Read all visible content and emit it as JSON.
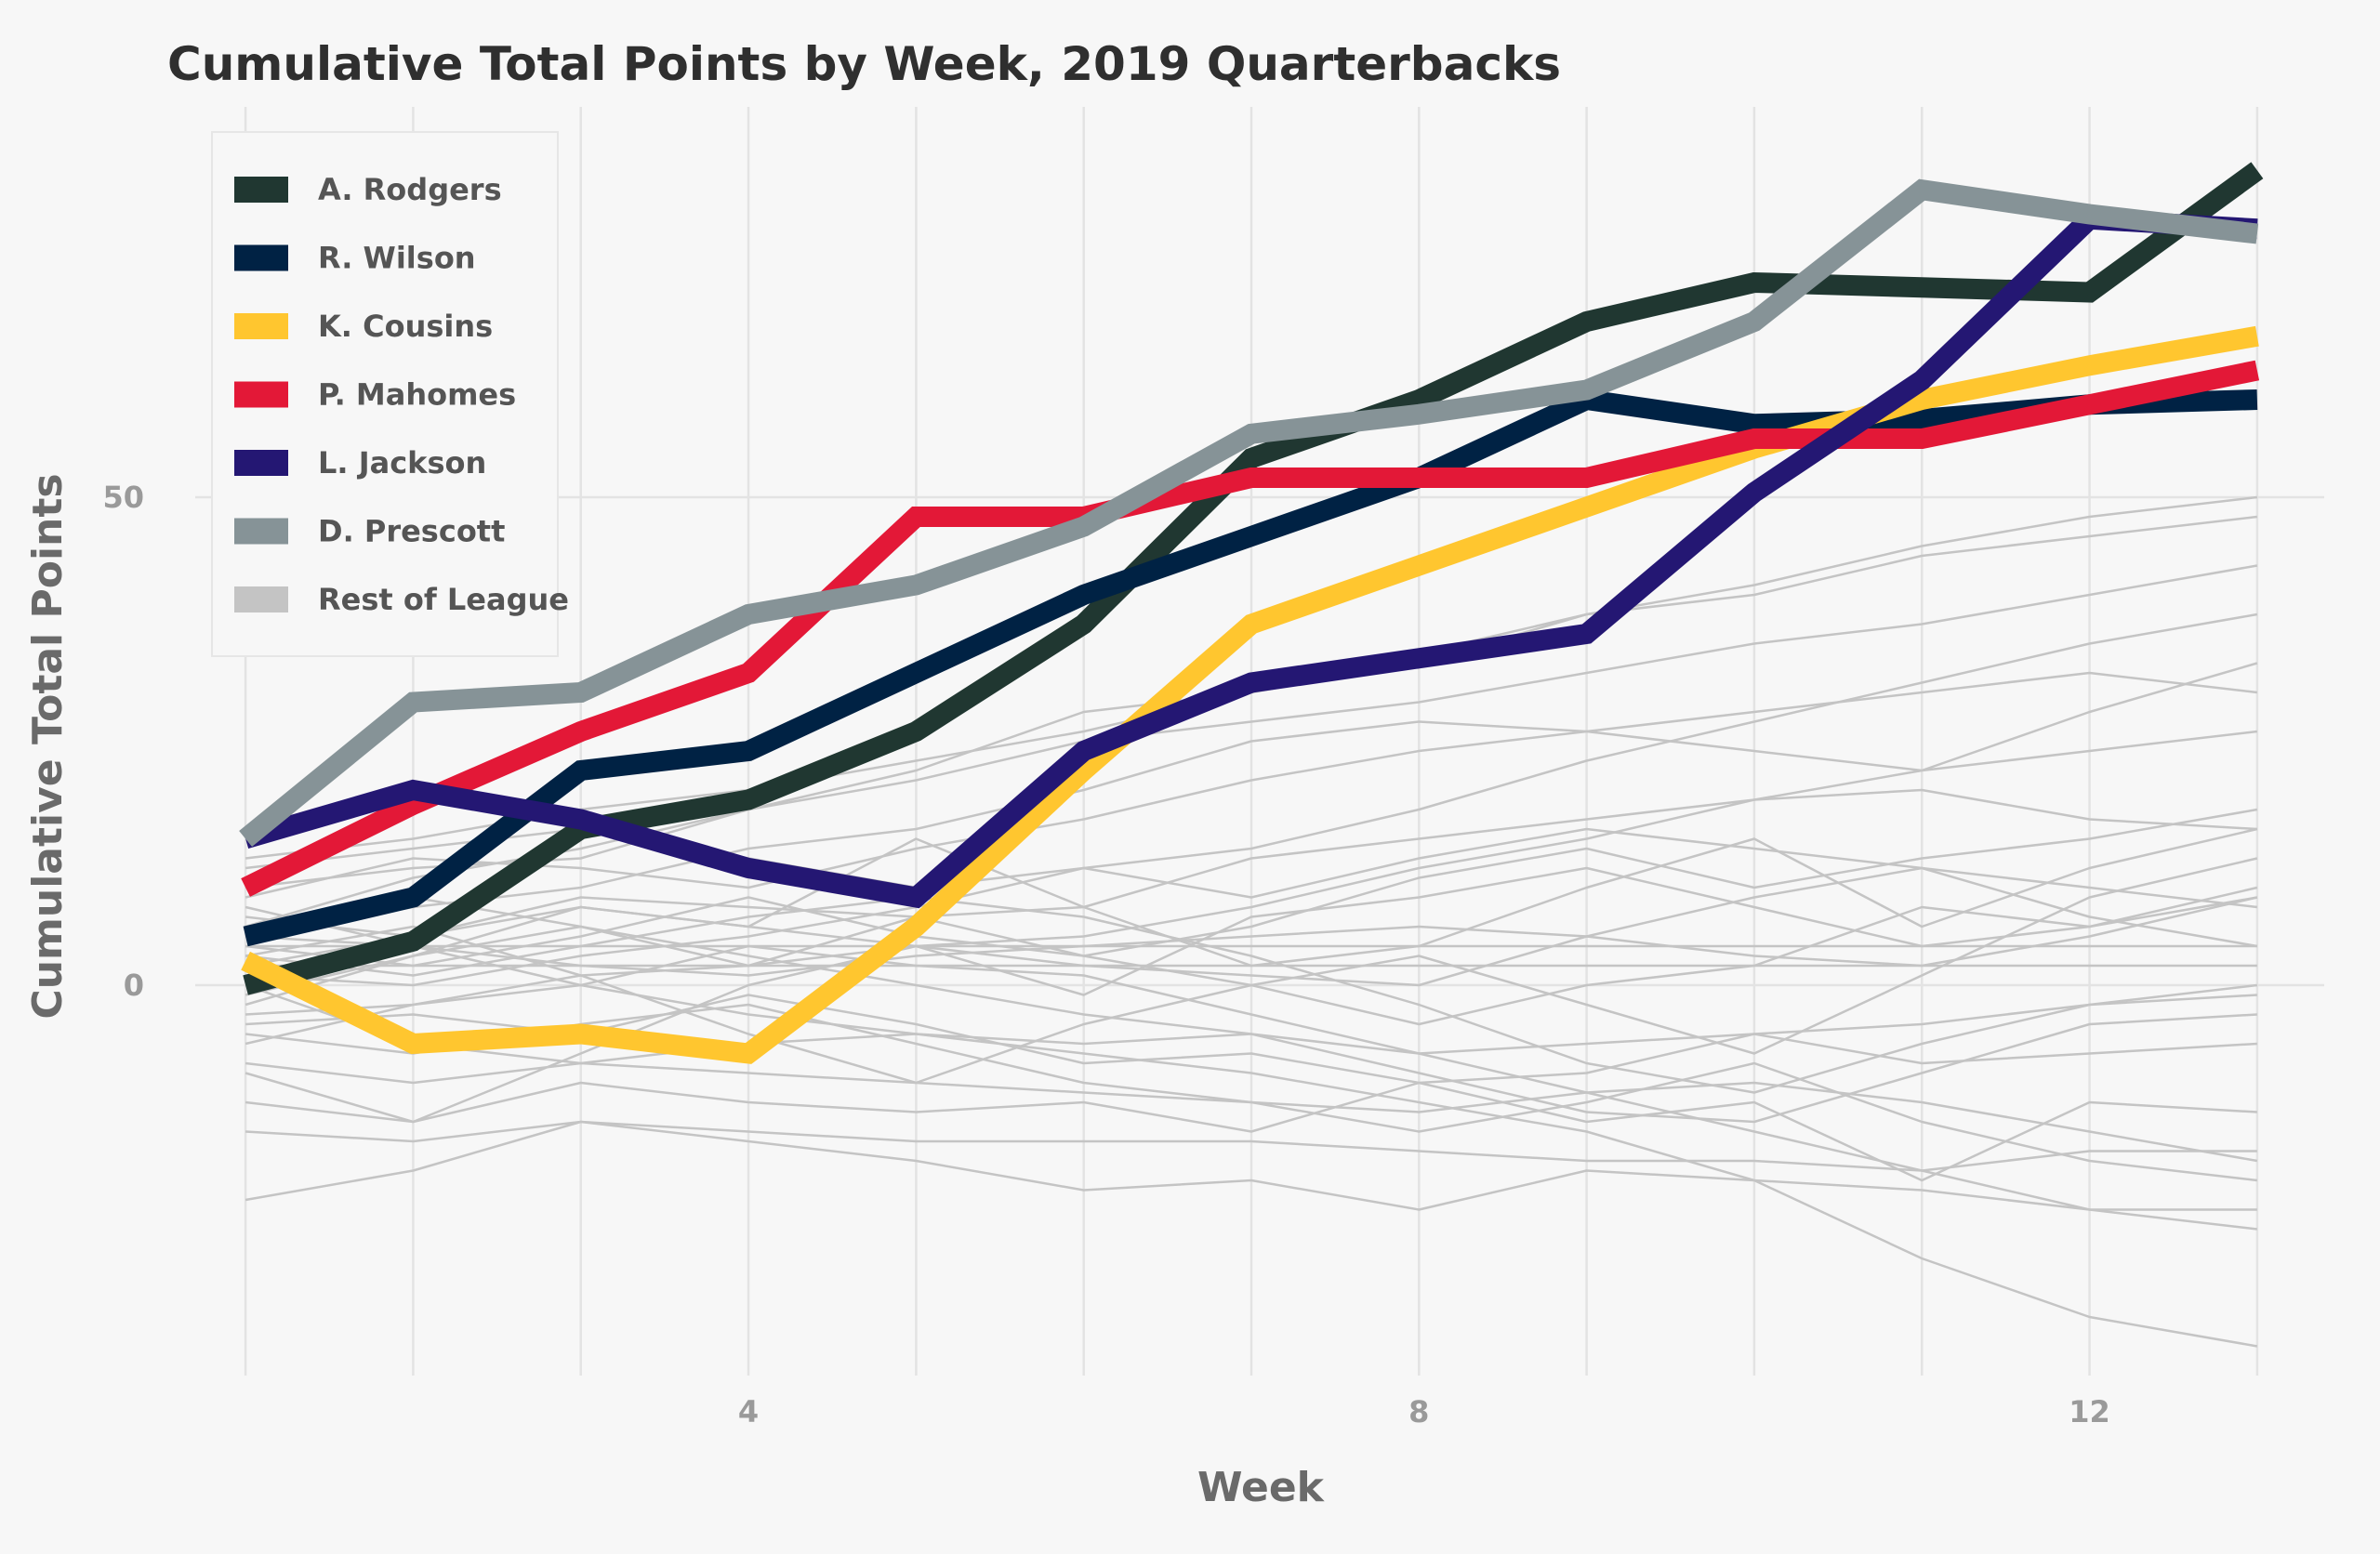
{
  "chart_data": {
    "type": "line",
    "title": "Cumulative Total Points by Week, 2019 Quarterbacks",
    "xlabel": "Week",
    "ylabel": "Cumulative Total Points",
    "xlim": [
      0.7,
      13.4
    ],
    "ylim": [
      -40,
      90
    ],
    "x_ticks": [
      4,
      8,
      12
    ],
    "y_ticks": [
      0,
      50
    ],
    "grid": true,
    "legend_position": "top-left",
    "x": [
      1,
      2,
      3,
      4,
      5,
      6,
      7,
      8,
      9,
      10,
      11,
      12,
      13
    ],
    "series": [
      {
        "name": "A. Rodgers",
        "color": "#203731",
        "highlight": true,
        "values": [
          0,
          4.5,
          16,
          19,
          26,
          37,
          54,
          60,
          68,
          72,
          71.5,
          71,
          83.5
        ]
      },
      {
        "name": "R. Wilson",
        "color": "#002244",
        "highlight": true,
        "values": [
          5,
          9,
          22,
          24,
          32,
          40,
          46,
          52,
          60,
          57.5,
          58,
          59.5,
          60
        ]
      },
      {
        "name": "K. Cousins",
        "color": "#FFC62F",
        "highlight": true,
        "values": [
          2.5,
          -6,
          -5,
          -7,
          6,
          22,
          37,
          43,
          49,
          55,
          60,
          63.5,
          66.5
        ]
      },
      {
        "name": "P. Mahomes",
        "color": "#E31837",
        "highlight": true,
        "values": [
          10,
          18.5,
          26,
          32,
          48,
          48,
          52,
          52,
          52,
          56,
          56,
          59.5,
          63
        ]
      },
      {
        "name": "L. Jackson",
        "color": "#241773",
        "highlight": true,
        "values": [
          15,
          20,
          17,
          12,
          9,
          24,
          31,
          33.5,
          36,
          50.5,
          62,
          78.5,
          77.5
        ]
      },
      {
        "name": "D. Prescott",
        "color": "#869397",
        "highlight": true,
        "values": [
          15,
          29,
          30,
          38,
          41,
          47,
          56.5,
          58.5,
          61,
          68,
          81.5,
          79,
          77
        ]
      },
      {
        "name": "Rest of League",
        "color": "#c4c4c4",
        "highlight": false,
        "lines": [
          [
            -2,
            3,
            8,
            6,
            15,
            8,
            2,
            4,
            10,
            15,
            6,
            12,
            16
          ],
          [
            -9,
            -14,
            -7,
            0,
            4,
            -1,
            7,
            9,
            12,
            8,
            4,
            6,
            9
          ],
          [
            3,
            6,
            1,
            -5,
            -10,
            -4,
            0,
            3,
            -2,
            -7,
            1,
            9,
            13
          ],
          [
            -15,
            -16,
            -14,
            -15,
            -16,
            -16,
            -16,
            -17,
            -18,
            -18,
            -19,
            -17,
            -17
          ],
          [
            6,
            11,
            14,
            18,
            21,
            25,
            27,
            29,
            32,
            35,
            37,
            40,
            43
          ],
          [
            -5,
            -7,
            -4,
            -2,
            -6,
            -10,
            -12,
            -15,
            -12,
            -8,
            -14,
            -18,
            -20
          ],
          [
            4,
            2,
            5,
            9,
            5,
            3,
            6,
            11,
            14,
            10,
            13,
            15,
            18
          ],
          [
            -22,
            -19,
            -14,
            -16,
            -18,
            -21,
            -20,
            -23,
            -19,
            -20,
            -21,
            -23,
            -23
          ],
          [
            1,
            0,
            3,
            5,
            8,
            12,
            14,
            18,
            23,
            27,
            31,
            35,
            38
          ],
          [
            -3,
            -2,
            1,
            2,
            4,
            5,
            8,
            12,
            15,
            19,
            20,
            17,
            16
          ],
          [
            5,
            8,
            10,
            14,
            16,
            20,
            25,
            27,
            26,
            24,
            22,
            28,
            33
          ],
          [
            8,
            4,
            0,
            -3,
            -5,
            -7,
            -9,
            -12,
            -15,
            -20,
            -28,
            -34,
            -37
          ],
          [
            2,
            2,
            2,
            2,
            2,
            2,
            2,
            2,
            2,
            2,
            2,
            2,
            2
          ],
          [
            4,
            4,
            4,
            4,
            4,
            4,
            4,
            4,
            4,
            4,
            4,
            4,
            4
          ],
          [
            -1,
            3,
            6,
            2,
            7,
            3,
            0,
            -4,
            0,
            2,
            8,
            6,
            10
          ],
          [
            0,
            -6,
            -8,
            -6,
            -5,
            -6,
            -5,
            -7,
            -6,
            -5,
            -4,
            -2,
            -1
          ],
          [
            12,
            14,
            16,
            13,
            10,
            12,
            9,
            13,
            16,
            14,
            12,
            10,
            8
          ],
          [
            7,
            5,
            9,
            8,
            7,
            8,
            13,
            15,
            17,
            19,
            22,
            24,
            26
          ],
          [
            -12,
            -14,
            -10,
            -12,
            -13,
            -12,
            -15,
            -10,
            -14,
            -12,
            -20,
            -12,
            -13
          ],
          [
            10,
            12,
            13,
            18,
            22,
            28,
            30,
            33,
            38,
            41,
            45,
            48,
            50
          ],
          [
            3,
            1,
            4,
            7,
            9,
            7,
            3,
            -2,
            -8,
            -11,
            -6,
            -2,
            0
          ],
          [
            -6,
            -2,
            0,
            4,
            2,
            1,
            -3,
            -7,
            -11,
            -15,
            -19,
            -23,
            -25
          ],
          [
            6,
            9,
            6,
            3,
            0,
            -3,
            -5,
            -9,
            -13,
            -14,
            -9,
            -4,
            -3
          ],
          [
            9,
            13,
            12,
            10,
            14,
            17,
            21,
            24,
            26,
            28,
            30,
            32,
            30
          ],
          [
            -4,
            -3,
            -5,
            -1,
            -4,
            -8,
            -7,
            -10,
            -9,
            -5,
            -8,
            -7,
            -6
          ],
          [
            5,
            4,
            2,
            1,
            3,
            4,
            5,
            6,
            5,
            3,
            2,
            5,
            9
          ],
          [
            13,
            15,
            18,
            20,
            23,
            26,
            30,
            34,
            38,
            40,
            44,
            46,
            48
          ],
          [
            -8,
            -10,
            -8,
            -9,
            -10,
            -11,
            -12,
            -13,
            -11,
            -10,
            -12,
            -15,
            -18
          ],
          [
            2,
            5,
            8,
            6,
            4,
            2,
            1,
            0,
            5,
            9,
            12,
            7,
            4
          ]
        ]
      }
    ]
  }
}
